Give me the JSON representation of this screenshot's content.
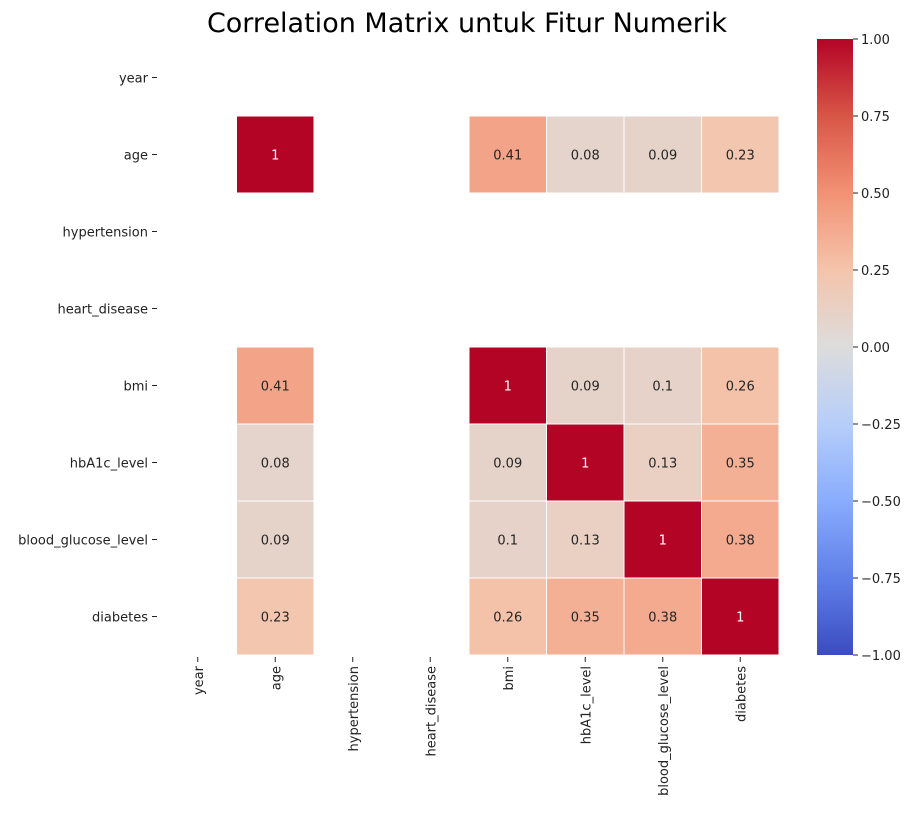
{
  "chart_data": {
    "type": "heatmap",
    "title": "Correlation Matrix untuk Fitur Numerik",
    "xlabel": "",
    "ylabel": "",
    "rows": [
      "year",
      "age",
      "hypertension",
      "heart_disease",
      "bmi",
      "hbA1c_level",
      "blood_glucose_level",
      "diabetes"
    ],
    "columns": [
      "year",
      "age",
      "hypertension",
      "heart_disease",
      "bmi",
      "hbA1c_level",
      "blood_glucose_level",
      "diabetes"
    ],
    "values": [
      [
        null,
        null,
        null,
        null,
        null,
        null,
        null,
        null
      ],
      [
        null,
        1,
        null,
        null,
        0.41,
        0.08,
        0.09,
        0.23
      ],
      [
        null,
        null,
        null,
        null,
        null,
        null,
        null,
        null
      ],
      [
        null,
        null,
        null,
        null,
        null,
        null,
        null,
        null
      ],
      [
        null,
        0.41,
        null,
        null,
        1,
        0.09,
        0.1,
        0.26
      ],
      [
        null,
        0.08,
        null,
        null,
        0.09,
        1,
        0.13,
        0.35
      ],
      [
        null,
        0.09,
        null,
        null,
        0.1,
        0.13,
        1,
        0.38
      ],
      [
        null,
        0.23,
        null,
        null,
        0.26,
        0.35,
        0.38,
        1
      ]
    ],
    "colormap": "coolwarm",
    "vmin": -1.0,
    "vmax": 1.0,
    "colorbar_ticks": [
      "−1.00",
      "−0.75",
      "−0.50",
      "−0.25",
      "0.00",
      "0.25",
      "0.50",
      "0.75",
      "1.00"
    ],
    "colorbar_tick_values": [
      -1.0,
      -0.75,
      -0.5,
      -0.25,
      0.0,
      0.25,
      0.5,
      0.75,
      1.0
    ],
    "colorbar_placement": "right",
    "annotations": true,
    "cell_border_color": "#ffffff",
    "colors": {
      "min": "#3b4cc0",
      "mid": "#dddddd",
      "max": "#b40426"
    }
  }
}
